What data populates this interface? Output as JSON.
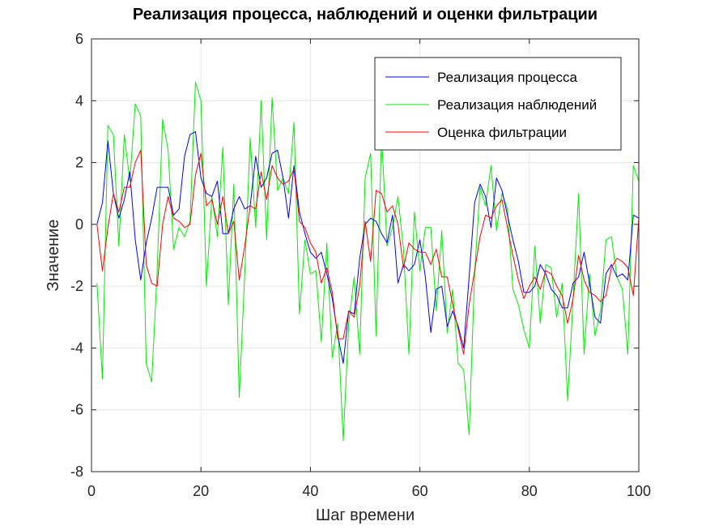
{
  "chart_data": {
    "type": "line",
    "title": "Реализация процесса, наблюдений и оценки фильтрации",
    "xlabel": "Шаг времени",
    "ylabel": "Значение",
    "xlim": [
      0,
      100
    ],
    "ylim": [
      -8,
      6
    ],
    "xticks": [
      0,
      20,
      40,
      60,
      80,
      100
    ],
    "yticks": [
      -8,
      -6,
      -4,
      -2,
      0,
      2,
      4,
      6
    ],
    "grid": true,
    "legend_position": "top-right",
    "x": [
      1,
      2,
      3,
      4,
      5,
      6,
      7,
      8,
      9,
      10,
      11,
      12,
      13,
      14,
      15,
      16,
      17,
      18,
      19,
      20,
      21,
      22,
      23,
      24,
      25,
      26,
      27,
      28,
      29,
      30,
      31,
      32,
      33,
      34,
      35,
      36,
      37,
      38,
      39,
      40,
      41,
      42,
      43,
      44,
      45,
      46,
      47,
      48,
      49,
      50,
      51,
      52,
      53,
      54,
      55,
      56,
      57,
      58,
      59,
      60,
      61,
      62,
      63,
      64,
      65,
      66,
      67,
      68,
      69,
      70,
      71,
      72,
      73,
      74,
      75,
      76,
      77,
      78,
      79,
      80,
      81,
      82,
      83,
      84,
      85,
      86,
      87,
      88,
      89,
      90,
      91,
      92,
      93,
      94,
      95,
      96,
      97,
      98,
      99,
      100
    ],
    "series": [
      {
        "name": "Реализация процесса",
        "color": "#0000ff",
        "values": [
          0,
          0.7,
          2.7,
          1,
          0.2,
          0.8,
          1.7,
          -0.5,
          -1.8,
          -0.6,
          0.2,
          1.2,
          1.2,
          1.2,
          0.3,
          0.5,
          2.2,
          2.9,
          3,
          1.5,
          1,
          0.9,
          1.4,
          -0.3,
          -0.3,
          0.5,
          0.9,
          0.5,
          0.6,
          2.2,
          1.2,
          1.5,
          2.3,
          2.4,
          1.5,
          0.2,
          1.9,
          0.4,
          -0.3,
          -0.9,
          -1.1,
          -0.9,
          -1.6,
          -2.4,
          -3.6,
          -4.5,
          -2.8,
          -2.9,
          -1.1,
          0,
          0.2,
          0.1,
          -0.3,
          -0.6,
          0.3,
          -1.9,
          -1.3,
          -1.5,
          -1.3,
          -0.5,
          -1.7,
          -3.5,
          -2.1,
          -2,
          -3.3,
          -2.8,
          -3.3,
          -4,
          -1.7,
          0.7,
          1.3,
          0.9,
          -0.1,
          1.5,
          1.1,
          0.3,
          -0.5,
          -1.2,
          -2.2,
          -2.2,
          -2,
          -1.3,
          -1.6,
          -2.1,
          -2.3,
          -2.7,
          -2.7,
          -1.9,
          -1.7,
          -0.9,
          -1.9,
          -3,
          -3.2,
          -1.6,
          -1.3,
          -1.7,
          -1.6,
          -1.8,
          0.3,
          0.2
        ]
      },
      {
        "name": "Реализация наблюдений",
        "color": "#00ee00",
        "values": [
          -1.9,
          -5,
          3.2,
          2.9,
          -0.7,
          2.9,
          1.4,
          3.9,
          3.5,
          -4.5,
          -5.1,
          -1.5,
          3.4,
          2.4,
          -0.8,
          -0.1,
          -0.4,
          0.1,
          4.6,
          4,
          -2,
          0.9,
          -0.4,
          2.5,
          -2.6,
          1.3,
          -5.6,
          -1.6,
          2.8,
          -0.1,
          4,
          -0.5,
          4.1,
          1.1,
          1.5,
          1,
          3.3,
          -2.9,
          -0.5,
          -1.6,
          -1.5,
          -3.8,
          -0.6,
          -4.3,
          -3.2,
          -7,
          -3.2,
          -1.7,
          -4.2,
          1.5,
          2.3,
          -3.6,
          2.9,
          -0.7,
          -0.1,
          0.9,
          -0.8,
          -4.2,
          0.4,
          -1.5,
          -0.1,
          -0.1,
          -2.8,
          -0.2,
          -3.5,
          -2.1,
          -4.5,
          -4.7,
          -6.8,
          -1.6,
          1.2,
          0.6,
          1.9,
          -0.2,
          1,
          0.5,
          -2.1,
          -2.6,
          -3.4,
          -4,
          -0.7,
          -3.2,
          -1.3,
          -1.4,
          -3,
          -1.9,
          -5.7,
          -2.4,
          1,
          -4.2,
          -1.6,
          -3.6,
          -2.8,
          -0.5,
          -0.4,
          -1.7,
          -2.1,
          -4.2,
          1.9,
          1.4
        ]
      },
      {
        "name": "Оценка фильтрации",
        "color": "#ff0000",
        "values": [
          0,
          -1.5,
          -0.1,
          1,
          0.4,
          1.2,
          1.2,
          2,
          2.4,
          -1.3,
          -1.9,
          -2,
          0,
          0.9,
          0.2,
          0.1,
          -0.1,
          0,
          1.6,
          2.3,
          0.6,
          0.8,
          0,
          0.9,
          -0.3,
          0.1,
          -1.8,
          -0.7,
          0.6,
          0.5,
          1.7,
          0.8,
          1.9,
          1.5,
          1.3,
          1.4,
          1.8,
          0.1,
          -0.1,
          -0.6,
          -0.9,
          -1.9,
          -1.4,
          -2.2,
          -3.7,
          -3.7,
          -2.8,
          -3,
          -2,
          0.1,
          -1.2,
          1.1,
          1,
          0.4,
          0.6,
          0,
          -1.4,
          -0.6,
          -0.8,
          -0.9,
          -0.9,
          -1.3,
          -0.8,
          -1.7,
          -1.7,
          -2.6,
          -3.4,
          -4.2,
          -2.6,
          -1.5,
          -0.4,
          0.3,
          0.2,
          0.6,
          0.8,
          -0.1,
          -1,
          -1.8,
          -2.4,
          -2,
          -1.7,
          -2.1,
          -1.5,
          -1.6,
          -2,
          -2.3,
          -3.2,
          -2.4,
          -1,
          -1.8,
          -2.2,
          -2.3,
          -2.5,
          -2.3,
          -1.4,
          -1.1,
          -1.2,
          -1.4,
          -2.3,
          0.2
        ]
      }
    ]
  }
}
